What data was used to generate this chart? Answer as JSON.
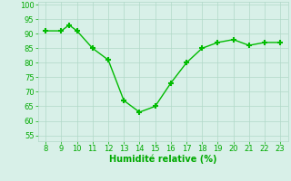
{
  "x_data": [
    8,
    9,
    9.5,
    10,
    11,
    12,
    13,
    14,
    15,
    16,
    17,
    18,
    19,
    20,
    21,
    22,
    23
  ],
  "y_data": [
    91,
    91,
    93,
    91,
    85,
    81,
    67,
    63,
    65,
    73,
    80,
    85,
    87,
    88,
    86,
    87,
    87
  ],
  "xlabel": "Humidité relative (%)",
  "xlim": [
    7.5,
    23.5
  ],
  "ylim": [
    53,
    101
  ],
  "yticks": [
    55,
    60,
    65,
    70,
    75,
    80,
    85,
    90,
    95,
    100
  ],
  "xticks": [
    8,
    9,
    10,
    11,
    12,
    13,
    14,
    15,
    16,
    17,
    18,
    19,
    20,
    21,
    22,
    23
  ],
  "line_color": "#00bb00",
  "marker_color": "#00bb00",
  "bg_color": "#d8f0e8",
  "grid_color": "#b0d8c8",
  "tick_color": "#00aa00",
  "label_color": "#00aa00",
  "tick_fontsize": 6,
  "xlabel_fontsize": 7
}
